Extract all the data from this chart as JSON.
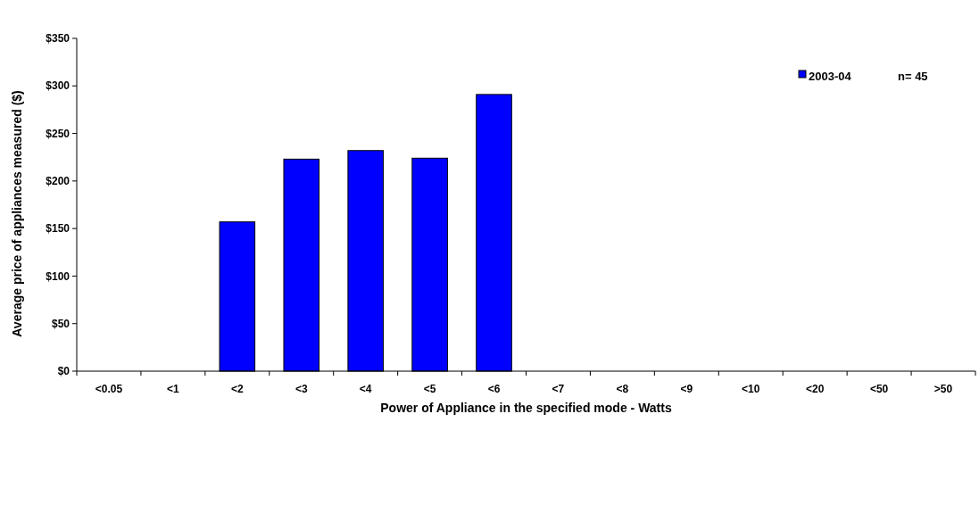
{
  "chart_data": {
    "type": "bar",
    "xlabel": "Power of Appliance in the specified mode - Watts",
    "ylabel": "Average price of appliances measured ($)",
    "categories": [
      "<0.05",
      "<1",
      "<2",
      "<3",
      "<4",
      "<5",
      "<6",
      "<7",
      "<8",
      "<9",
      "<10",
      "<20",
      "<50",
      ">50"
    ],
    "series": [
      {
        "name": "2003-04",
        "color": "#0000ff",
        "values": [
          null,
          null,
          157,
          223,
          232,
          224,
          291,
          null,
          null,
          null,
          null,
          null,
          null,
          null
        ]
      }
    ],
    "ylim": [
      0,
      350
    ],
    "yticks": [
      {
        "value": 0,
        "label": "$0"
      },
      {
        "value": 50,
        "label": "$50"
      },
      {
        "value": 100,
        "label": "$100"
      },
      {
        "value": 150,
        "label": "$150"
      },
      {
        "value": 200,
        "label": "$200"
      },
      {
        "value": 250,
        "label": "$250"
      },
      {
        "value": 300,
        "label": "$300"
      },
      {
        "value": 350,
        "label": "$350"
      }
    ],
    "legend": "top right",
    "annotations": [
      "n= 45"
    ]
  }
}
